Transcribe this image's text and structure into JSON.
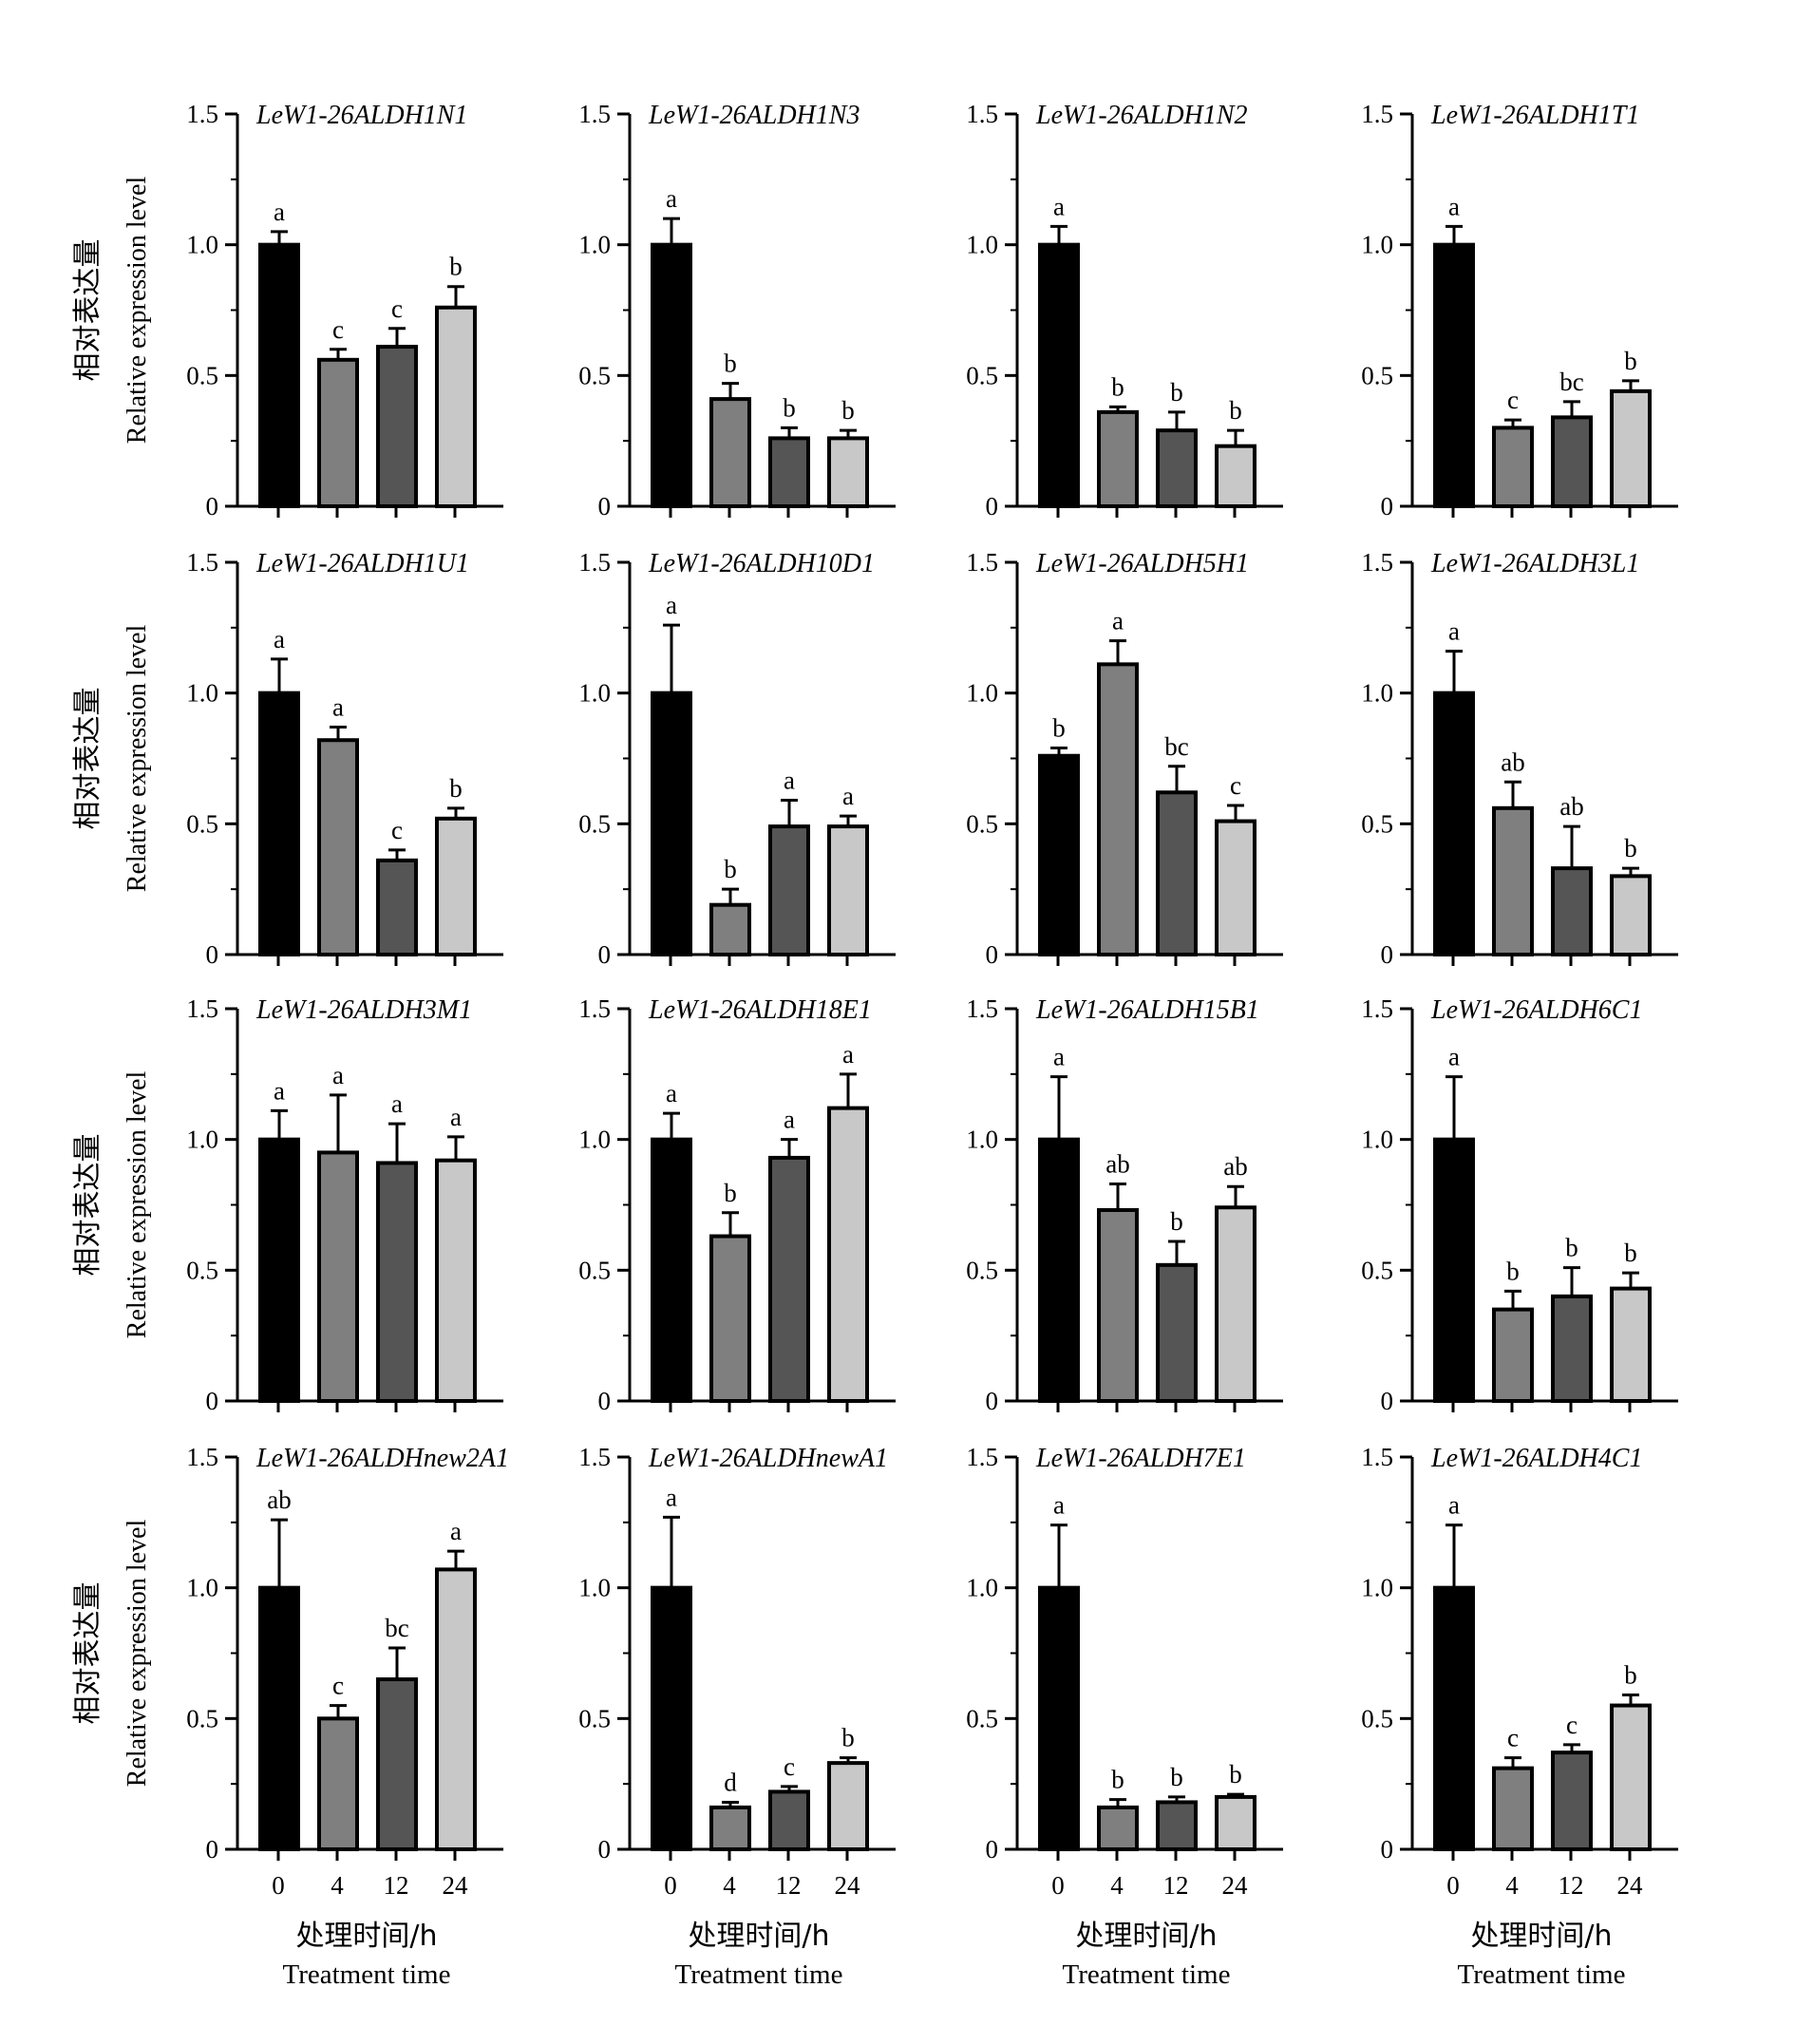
{
  "figure": {
    "ylabel_cn": "相对表达量",
    "ylabel_en": "Relative expression level",
    "xlabel_cn": "处理时间/h",
    "xlabel_en": "Treatment time",
    "bar_colors": [
      "#000000",
      "#7f7f7f",
      "#555555",
      "#c8c8c8"
    ]
  },
  "chart_data": [
    {
      "type": "bar",
      "title": "LeW1-26ALDH1N1",
      "categories": [
        "0",
        "4",
        "12",
        "24"
      ],
      "values": [
        1.0,
        0.56,
        0.61,
        0.76
      ],
      "errors": [
        0.05,
        0.04,
        0.07,
        0.08
      ],
      "letters": [
        "a",
        "c",
        "c",
        "b"
      ],
      "ylim": [
        0,
        1.5
      ],
      "yticks": [
        "0",
        "0.5",
        "1.0",
        "1.5"
      ]
    },
    {
      "type": "bar",
      "title": "LeW1-26ALDH1N3",
      "categories": [
        "0",
        "4",
        "12",
        "24"
      ],
      "values": [
        1.0,
        0.41,
        0.26,
        0.26
      ],
      "errors": [
        0.1,
        0.06,
        0.04,
        0.03
      ],
      "letters": [
        "a",
        "b",
        "b",
        "b"
      ],
      "ylim": [
        0,
        1.5
      ],
      "yticks": [
        "0",
        "0.5",
        "1.0",
        "1.5"
      ]
    },
    {
      "type": "bar",
      "title": "LeW1-26ALDH1N2",
      "categories": [
        "0",
        "4",
        "12",
        "24"
      ],
      "values": [
        1.0,
        0.36,
        0.29,
        0.23
      ],
      "errors": [
        0.07,
        0.02,
        0.07,
        0.06
      ],
      "letters": [
        "a",
        "b",
        "b",
        "b"
      ],
      "ylim": [
        0,
        1.5
      ],
      "yticks": [
        "0",
        "0.5",
        "1.0",
        "1.5"
      ]
    },
    {
      "type": "bar",
      "title": "LeW1-26ALDH1T1",
      "categories": [
        "0",
        "4",
        "12",
        "24"
      ],
      "values": [
        1.0,
        0.3,
        0.34,
        0.44
      ],
      "errors": [
        0.07,
        0.03,
        0.06,
        0.04
      ],
      "letters": [
        "a",
        "c",
        "bc",
        "b"
      ],
      "ylim": [
        0,
        1.5
      ],
      "yticks": [
        "0",
        "0.5",
        "1.0",
        "1.5"
      ]
    },
    {
      "type": "bar",
      "title": "LeW1-26ALDH1U1",
      "categories": [
        "0",
        "4",
        "12",
        "24"
      ],
      "values": [
        1.0,
        0.82,
        0.36,
        0.52
      ],
      "errors": [
        0.13,
        0.05,
        0.04,
        0.04
      ],
      "letters": [
        "a",
        "a",
        "c",
        "b"
      ],
      "ylim": [
        0,
        1.5
      ],
      "yticks": [
        "0",
        "0.5",
        "1.0",
        "1.5"
      ]
    },
    {
      "type": "bar",
      "title": "LeW1-26ALDH10D1",
      "categories": [
        "0",
        "4",
        "12",
        "24"
      ],
      "values": [
        1.0,
        0.19,
        0.49,
        0.49
      ],
      "errors": [
        0.26,
        0.06,
        0.1,
        0.04
      ],
      "letters": [
        "a",
        "b",
        "a",
        "a"
      ],
      "ylim": [
        0,
        1.5
      ],
      "yticks": [
        "0",
        "0.5",
        "1.0",
        "1.5"
      ]
    },
    {
      "type": "bar",
      "title": "LeW1-26ALDH5H1",
      "categories": [
        "0",
        "4",
        "12",
        "24"
      ],
      "values": [
        0.76,
        1.11,
        0.62,
        0.51
      ],
      "errors": [
        0.03,
        0.09,
        0.1,
        0.06
      ],
      "letters": [
        "b",
        "a",
        "bc",
        "c"
      ],
      "ylim": [
        0,
        1.5
      ],
      "yticks": [
        "0",
        "0.5",
        "1.0",
        "1.5"
      ]
    },
    {
      "type": "bar",
      "title": "LeW1-26ALDH3L1",
      "categories": [
        "0",
        "4",
        "12",
        "24"
      ],
      "values": [
        1.0,
        0.56,
        0.33,
        0.3
      ],
      "errors": [
        0.16,
        0.1,
        0.16,
        0.03
      ],
      "letters": [
        "a",
        "ab",
        "ab",
        "b"
      ],
      "ylim": [
        0,
        1.5
      ],
      "yticks": [
        "0",
        "0.5",
        "1.0",
        "1.5"
      ]
    },
    {
      "type": "bar",
      "title": "LeW1-26ALDH3M1",
      "categories": [
        "0",
        "4",
        "12",
        "24"
      ],
      "values": [
        1.0,
        0.95,
        0.91,
        0.92
      ],
      "errors": [
        0.11,
        0.22,
        0.15,
        0.09
      ],
      "letters": [
        "a",
        "a",
        "a",
        "a"
      ],
      "ylim": [
        0,
        1.5
      ],
      "yticks": [
        "0",
        "0.5",
        "1.0",
        "1.5"
      ]
    },
    {
      "type": "bar",
      "title": "LeW1-26ALDH18E1",
      "categories": [
        "0",
        "4",
        "12",
        "24"
      ],
      "values": [
        1.0,
        0.63,
        0.93,
        1.12
      ],
      "errors": [
        0.1,
        0.09,
        0.07,
        0.13
      ],
      "letters": [
        "a",
        "b",
        "a",
        "a"
      ],
      "ylim": [
        0,
        1.5
      ],
      "yticks": [
        "0",
        "0.5",
        "1.0",
        "1.5"
      ]
    },
    {
      "type": "bar",
      "title": "LeW1-26ALDH15B1",
      "categories": [
        "0",
        "4",
        "12",
        "24"
      ],
      "values": [
        1.0,
        0.73,
        0.52,
        0.74
      ],
      "errors": [
        0.24,
        0.1,
        0.09,
        0.08
      ],
      "letters": [
        "a",
        "ab",
        "b",
        "ab"
      ],
      "ylim": [
        0,
        1.5
      ],
      "yticks": [
        "0",
        "0.5",
        "1.0",
        "1.5"
      ]
    },
    {
      "type": "bar",
      "title": "LeW1-26ALDH6C1",
      "categories": [
        "0",
        "4",
        "12",
        "24"
      ],
      "values": [
        1.0,
        0.35,
        0.4,
        0.43
      ],
      "errors": [
        0.24,
        0.07,
        0.11,
        0.06
      ],
      "letters": [
        "a",
        "b",
        "b",
        "b"
      ],
      "ylim": [
        0,
        1.5
      ],
      "yticks": [
        "0",
        "0.5",
        "1.0",
        "1.5"
      ]
    },
    {
      "type": "bar",
      "title": "LeW1-26ALDHnew2A1",
      "categories": [
        "0",
        "4",
        "12",
        "24"
      ],
      "values": [
        1.0,
        0.5,
        0.65,
        1.07
      ],
      "errors": [
        0.26,
        0.05,
        0.12,
        0.07
      ],
      "letters": [
        "ab",
        "c",
        "bc",
        "a"
      ],
      "ylim": [
        0,
        1.5
      ],
      "yticks": [
        "0",
        "0.5",
        "1.0",
        "1.5"
      ]
    },
    {
      "type": "bar",
      "title": "LeW1-26ALDHnewA1",
      "categories": [
        "0",
        "4",
        "12",
        "24"
      ],
      "values": [
        1.0,
        0.16,
        0.22,
        0.33
      ],
      "errors": [
        0.27,
        0.02,
        0.02,
        0.02
      ],
      "letters": [
        "a",
        "d",
        "c",
        "b"
      ],
      "ylim": [
        0,
        1.5
      ],
      "yticks": [
        "0",
        "0.5",
        "1.0",
        "1.5"
      ]
    },
    {
      "type": "bar",
      "title": "LeW1-26ALDH7E1",
      "categories": [
        "0",
        "4",
        "12",
        "24"
      ],
      "values": [
        1.0,
        0.16,
        0.18,
        0.2
      ],
      "errors": [
        0.24,
        0.03,
        0.02,
        0.01
      ],
      "letters": [
        "a",
        "b",
        "b",
        "b"
      ],
      "ylim": [
        0,
        1.5
      ],
      "yticks": [
        "0",
        "0.5",
        "1.0",
        "1.5"
      ]
    },
    {
      "type": "bar",
      "title": "LeW1-26ALDH4C1",
      "categories": [
        "0",
        "4",
        "12",
        "24"
      ],
      "values": [
        1.0,
        0.31,
        0.37,
        0.55
      ],
      "errors": [
        0.24,
        0.04,
        0.03,
        0.04
      ],
      "letters": [
        "a",
        "c",
        "c",
        "b"
      ],
      "ylim": [
        0,
        1.5
      ],
      "yticks": [
        "0",
        "0.5",
        "1.0",
        "1.5"
      ]
    }
  ]
}
